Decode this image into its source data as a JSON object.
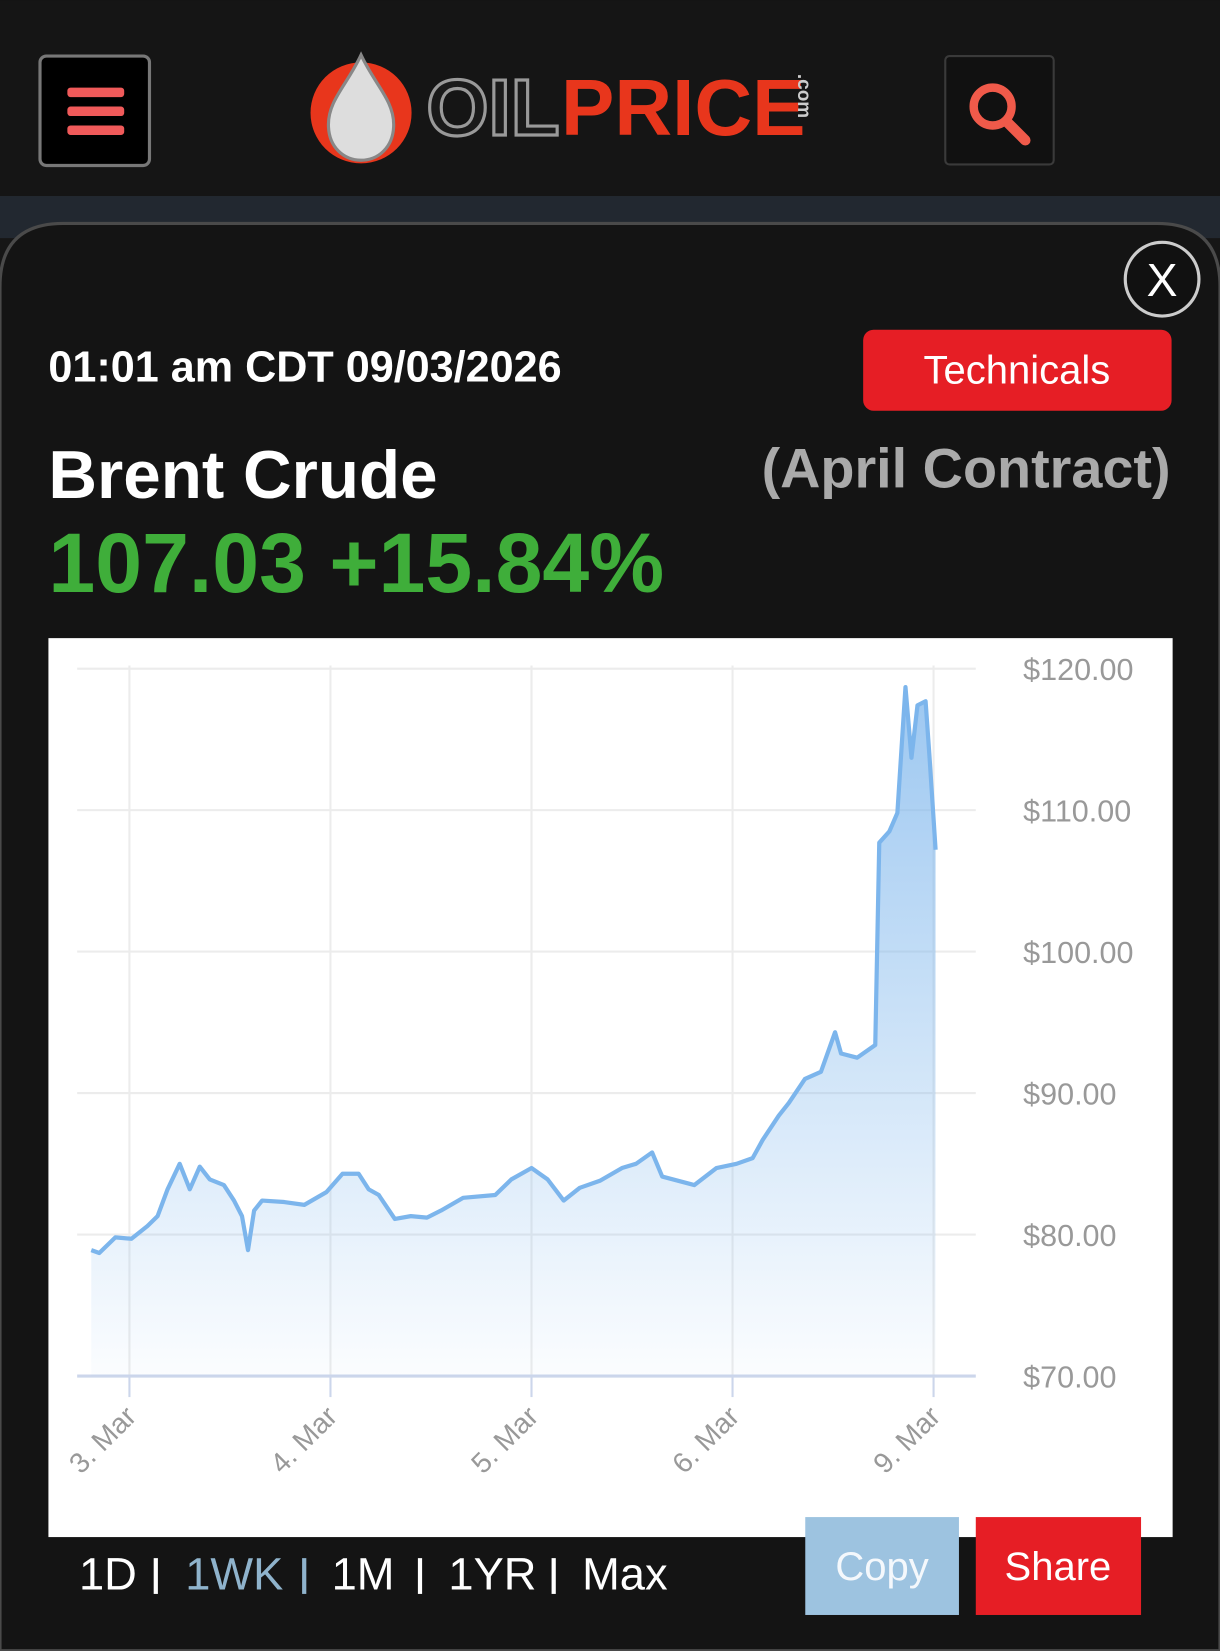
{
  "logo": {
    "oil": "OIL",
    "price": "PRICE",
    "com": ".com"
  },
  "close_button": "X",
  "timestamp": "01:01 am CDT 09/03/2026",
  "technicals_button": "Technicals",
  "commodity": "Brent Crude",
  "contract": "(April Contract)",
  "quote": "107.03 +15.84%",
  "chart_data": {
    "type": "line",
    "x": [
      -0.19,
      -0.15,
      -0.07,
      0.01,
      0.09,
      0.14,
      0.19,
      0.25,
      0.3,
      0.35,
      0.4,
      0.47,
      0.52,
      0.56,
      0.59,
      0.62,
      0.66,
      0.77,
      0.87,
      0.98,
      1.06,
      1.14,
      1.19,
      1.24,
      1.32,
      1.4,
      1.48,
      1.55,
      1.66,
      1.82,
      1.9,
      2.0,
      2.08,
      2.16,
      2.24,
      2.34,
      2.45,
      2.52,
      2.6,
      2.65,
      2.81,
      2.92,
      3.02,
      3.1,
      3.15,
      3.23,
      3.28,
      3.36,
      3.44,
      3.51,
      3.54,
      3.62,
      3.71,
      3.73,
      3.78,
      3.82,
      3.86,
      3.89,
      3.92,
      3.96,
      3.98,
      4.01
    ],
    "values": [
      78.9,
      78.7,
      79.8,
      79.7,
      80.6,
      81.3,
      83.2,
      85.0,
      83.2,
      84.8,
      83.9,
      83.5,
      82.4,
      81.3,
      78.9,
      81.7,
      82.4,
      82.3,
      82.1,
      83.0,
      84.3,
      84.3,
      83.2,
      82.8,
      81.1,
      81.3,
      81.2,
      81.7,
      82.6,
      82.8,
      83.9,
      84.7,
      83.9,
      82.4,
      83.3,
      83.8,
      84.7,
      85.0,
      85.8,
      84.1,
      83.5,
      84.7,
      85.0,
      85.4,
      86.7,
      88.4,
      89.3,
      91.0,
      91.5,
      94.3,
      92.8,
      92.5,
      93.4,
      107.7,
      108.5,
      109.8,
      118.7,
      113.7,
      117.4,
      117.7,
      113.7,
      107.2
    ],
    "color": "#7cb5ec",
    "xlim": [
      -0.26,
      4.21
    ],
    "xticks": [
      {
        "value": 0,
        "label": "3. Mar"
      },
      {
        "value": 1,
        "label": "4. Mar"
      },
      {
        "value": 2,
        "label": "5. Mar"
      },
      {
        "value": 3,
        "label": "6. Mar"
      },
      {
        "value": 4,
        "label": "9. Mar"
      }
    ],
    "ylim": [
      70,
      120
    ],
    "yticks": [
      {
        "value": 70,
        "label": "$70.00"
      },
      {
        "value": 80,
        "label": "$80.00"
      },
      {
        "value": 90,
        "label": "$90.00"
      },
      {
        "value": 100,
        "label": "$100.00"
      },
      {
        "value": 110,
        "label": "$110.00"
      },
      {
        "value": 120,
        "label": "$120.00"
      }
    ],
    "grid": true
  },
  "ranges": [
    "1D",
    "1WK",
    "1M",
    "1YR",
    "Max"
  ],
  "copy_button": "Copy",
  "share_button": "Share"
}
